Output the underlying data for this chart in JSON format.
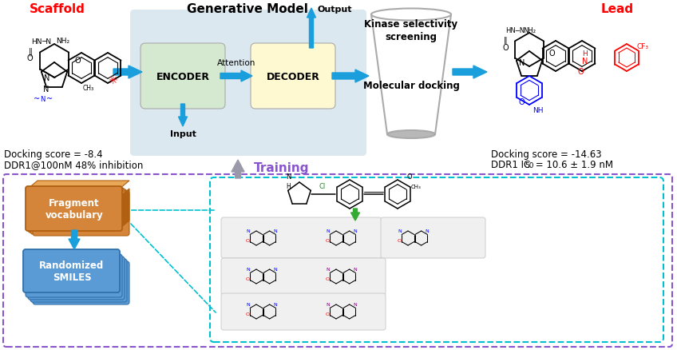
{
  "bg_color": "#ffffff",
  "gen_model_bg": "#dce8f0",
  "encoder_color": "#d5e8d0",
  "decoder_color": "#fef9d0",
  "scaffold_label": "Scaffold",
  "lead_label": "Lead",
  "gen_model_label": "Generative Model",
  "encoder_label": "ENCODER",
  "decoder_label": "DECODER",
  "attention_label": "Attention",
  "input_label": "Input",
  "output_label": "Output",
  "funnel_text1": "Kinase selectivity\nscreening",
  "funnel_text2": "Molecular docking",
  "scaffold_score": "Docking score = -8.4",
  "scaffold_inhibition": "DDR1@100nM 48% inhibition",
  "lead_score": "Docking score = -14.63",
  "lead_ic50_prefix": "DDR1 IC",
  "lead_ic50_sub": "50",
  "lead_ic50_suffix": " = 10.6 ± 1.9 nM",
  "training_label": "Training",
  "fragment_label": "Fragment\nvocabulary",
  "smiles_label": "Randomized\nSMILES",
  "red": "#ff0000",
  "blue_arrow": "#1a9fdc",
  "purple": "#8855cc",
  "cyan_dashed": "#00c0d0",
  "orange_dark": "#b06010",
  "orange_mid": "#d4853a",
  "orange_light": "#e8a858",
  "blue_box": "#5b9bd5",
  "blue_box_dark": "#3070aa",
  "green_arrow": "#33aa33",
  "funnel_edge": "#aaaaaa",
  "funnel_bot": "#b8b8b8",
  "panel_bg": "#f0f0f0",
  "panel_edge": "#cccccc",
  "training_up_arrow": "#9999aa"
}
